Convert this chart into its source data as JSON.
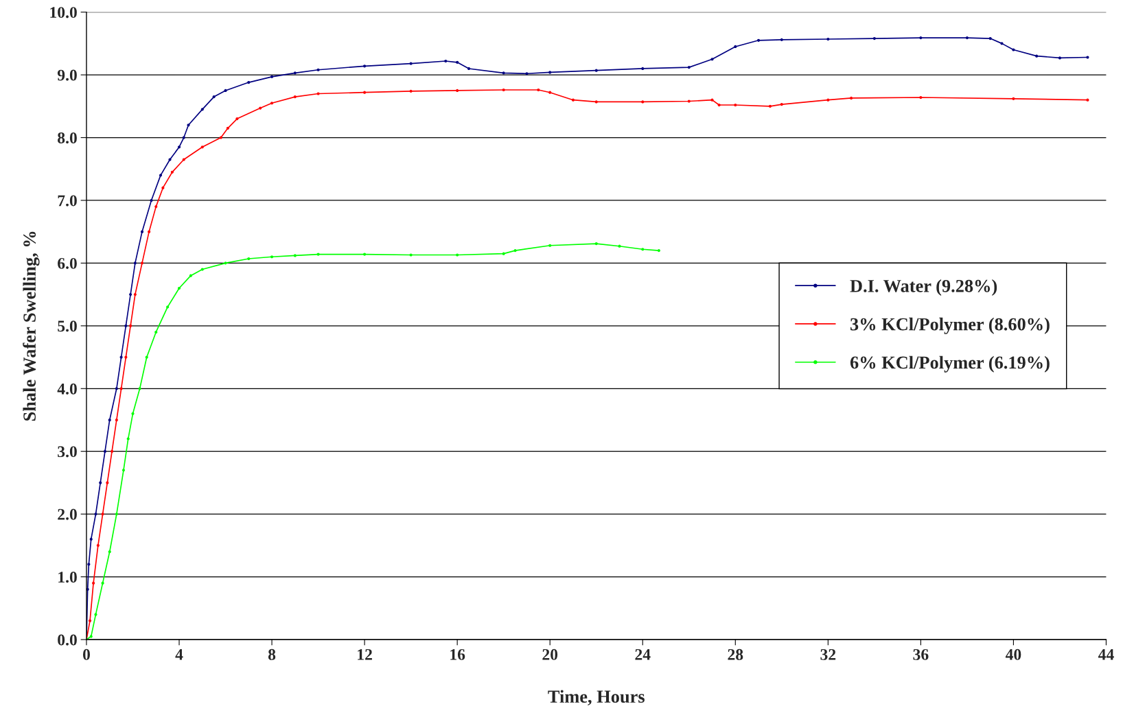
{
  "chart_data": {
    "type": "line",
    "xlabel": "Time, Hours",
    "ylabel": "Shale Wafer Swelling, %",
    "xlim": [
      0,
      44
    ],
    "xticks": [
      0,
      4,
      8,
      12,
      16,
      20,
      24,
      28,
      32,
      36,
      40,
      44
    ],
    "ylim": [
      0,
      10
    ],
    "yticks": [
      {
        "value": 0,
        "label": "0.0"
      },
      {
        "value": 1,
        "label": "1.0"
      },
      {
        "value": 2,
        "label": "2.0"
      },
      {
        "value": 3,
        "label": "3.0"
      },
      {
        "value": 4,
        "label": "4.0"
      },
      {
        "value": 5,
        "label": "5.0"
      },
      {
        "value": 6,
        "label": "6.0"
      },
      {
        "value": 7,
        "label": "7.0"
      },
      {
        "value": 8,
        "label": "8.0"
      },
      {
        "value": 9,
        "label": "9.0"
      },
      {
        "value": 10,
        "label": "10.0"
      }
    ],
    "grid": "y",
    "legend": "right",
    "marker": "circle",
    "line_style": "solid",
    "series": [
      {
        "name": "D.I. Water (9.28%)",
        "color": "#000080",
        "x": [
          0,
          0.05,
          0.1,
          0.2,
          0.4,
          0.6,
          0.8,
          1.0,
          1.3,
          1.5,
          1.7,
          1.9,
          2.1,
          2.4,
          2.8,
          3.2,
          3.6,
          4.0,
          4.2,
          4.4,
          5.0,
          5.5,
          6.0,
          7,
          8,
          9,
          10,
          12,
          14,
          15.5,
          16,
          16.5,
          18,
          19,
          20,
          22,
          24,
          26,
          27,
          28,
          29,
          30,
          32,
          34,
          36,
          38,
          39,
          39.5,
          40,
          41,
          42,
          43.2
        ],
        "values": [
          0,
          0.8,
          1.2,
          1.6,
          2.0,
          2.5,
          3.0,
          3.5,
          4.0,
          4.5,
          5.0,
          5.5,
          6.0,
          6.5,
          7.0,
          7.4,
          7.65,
          7.85,
          8.0,
          8.2,
          8.45,
          8.65,
          8.75,
          8.88,
          8.97,
          9.03,
          9.08,
          9.14,
          9.18,
          9.22,
          9.2,
          9.1,
          9.03,
          9.02,
          9.04,
          9.07,
          9.1,
          9.12,
          9.25,
          9.45,
          9.55,
          9.56,
          9.57,
          9.58,
          9.59,
          9.59,
          9.58,
          9.5,
          9.4,
          9.3,
          9.27,
          9.28
        ]
      },
      {
        "name": "3% KCl/Polymer (8.60%)",
        "color": "#ff0000",
        "x": [
          0,
          0.15,
          0.3,
          0.5,
          0.7,
          0.9,
          1.1,
          1.3,
          1.5,
          1.7,
          1.9,
          2.1,
          2.4,
          2.7,
          3.0,
          3.3,
          3.7,
          4.2,
          5,
          5.8,
          6.1,
          6.5,
          7.5,
          8,
          9,
          10,
          12,
          14,
          16,
          18,
          19.5,
          20,
          21,
          22,
          24,
          26,
          27,
          27.3,
          28,
          29.5,
          30,
          32,
          33,
          36,
          40,
          43.2
        ],
        "values": [
          0,
          0.3,
          0.9,
          1.5,
          2.0,
          2.5,
          3.0,
          3.5,
          4.0,
          4.5,
          5.0,
          5.5,
          6.0,
          6.5,
          6.9,
          7.2,
          7.45,
          7.65,
          7.85,
          8.0,
          8.15,
          8.3,
          8.47,
          8.55,
          8.65,
          8.7,
          8.72,
          8.74,
          8.75,
          8.76,
          8.76,
          8.72,
          8.6,
          8.57,
          8.57,
          8.58,
          8.6,
          8.52,
          8.52,
          8.5,
          8.53,
          8.6,
          8.63,
          8.64,
          8.62,
          8.6
        ]
      },
      {
        "name": "6% KCl/Polymer (6.19%)",
        "color": "#00ff00",
        "x": [
          0,
          0.2,
          0.4,
          0.7,
          1.0,
          1.3,
          1.6,
          1.8,
          2.0,
          2.3,
          2.6,
          3.0,
          3.5,
          4.0,
          4.5,
          5,
          6,
          7,
          8,
          9,
          10,
          12,
          14,
          16,
          18,
          18.5,
          20,
          22,
          23,
          24,
          24.7
        ],
        "values": [
          0,
          0.05,
          0.4,
          0.9,
          1.4,
          2.0,
          2.7,
          3.2,
          3.6,
          4.0,
          4.5,
          4.9,
          5.3,
          5.6,
          5.8,
          5.9,
          6.0,
          6.07,
          6.1,
          6.12,
          6.14,
          6.14,
          6.13,
          6.13,
          6.15,
          6.2,
          6.28,
          6.31,
          6.27,
          6.22,
          6.2
        ]
      }
    ]
  }
}
